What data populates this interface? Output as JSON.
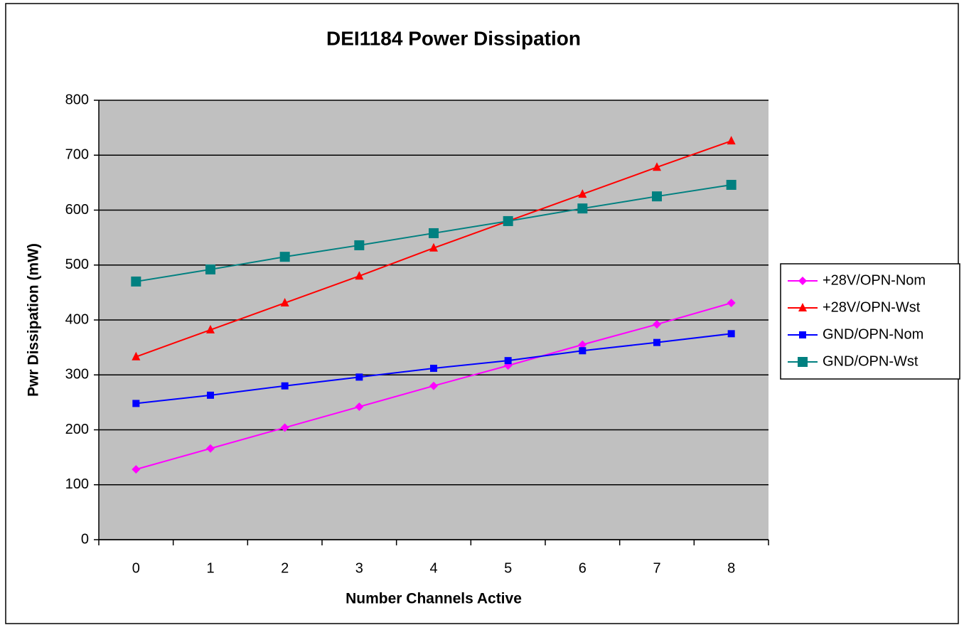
{
  "chart_data": {
    "type": "line",
    "title": "DEI1184 Power Dissipation",
    "x_label": "Number Channels Active",
    "y_label": "Pwr Dissipation (mW)",
    "categories": [
      "0",
      "1",
      "2",
      "3",
      "4",
      "5",
      "6",
      "7",
      "8"
    ],
    "series": [
      {
        "name": "+28V/OPN-Nom",
        "color": "#ff00ff",
        "marker": "diamond",
        "values": [
          128,
          166,
          204,
          242,
          280,
          317,
          355,
          392,
          431
        ]
      },
      {
        "name": "+28V/OPN-Wst",
        "color": "#ff0000",
        "marker": "triangle",
        "values": [
          333,
          382,
          431,
          480,
          531,
          580,
          629,
          678,
          726
        ]
      },
      {
        "name": "GND/OPN-Nom",
        "color": "#0000ff",
        "marker": "square",
        "values": [
          248,
          263,
          280,
          296,
          312,
          326,
          344,
          359,
          375
        ]
      },
      {
        "name": "GND/OPN-Wst",
        "color": "#008080",
        "marker": "square-large",
        "values": [
          470,
          492,
          515,
          536,
          558,
          580,
          603,
          625,
          646
        ]
      }
    ],
    "ylim": [
      0,
      800
    ],
    "yticks": [
      0,
      100,
      200,
      300,
      400,
      500,
      600,
      700,
      800
    ],
    "grid": true,
    "plot_background": "#c0c0c0",
    "legend": "right"
  }
}
